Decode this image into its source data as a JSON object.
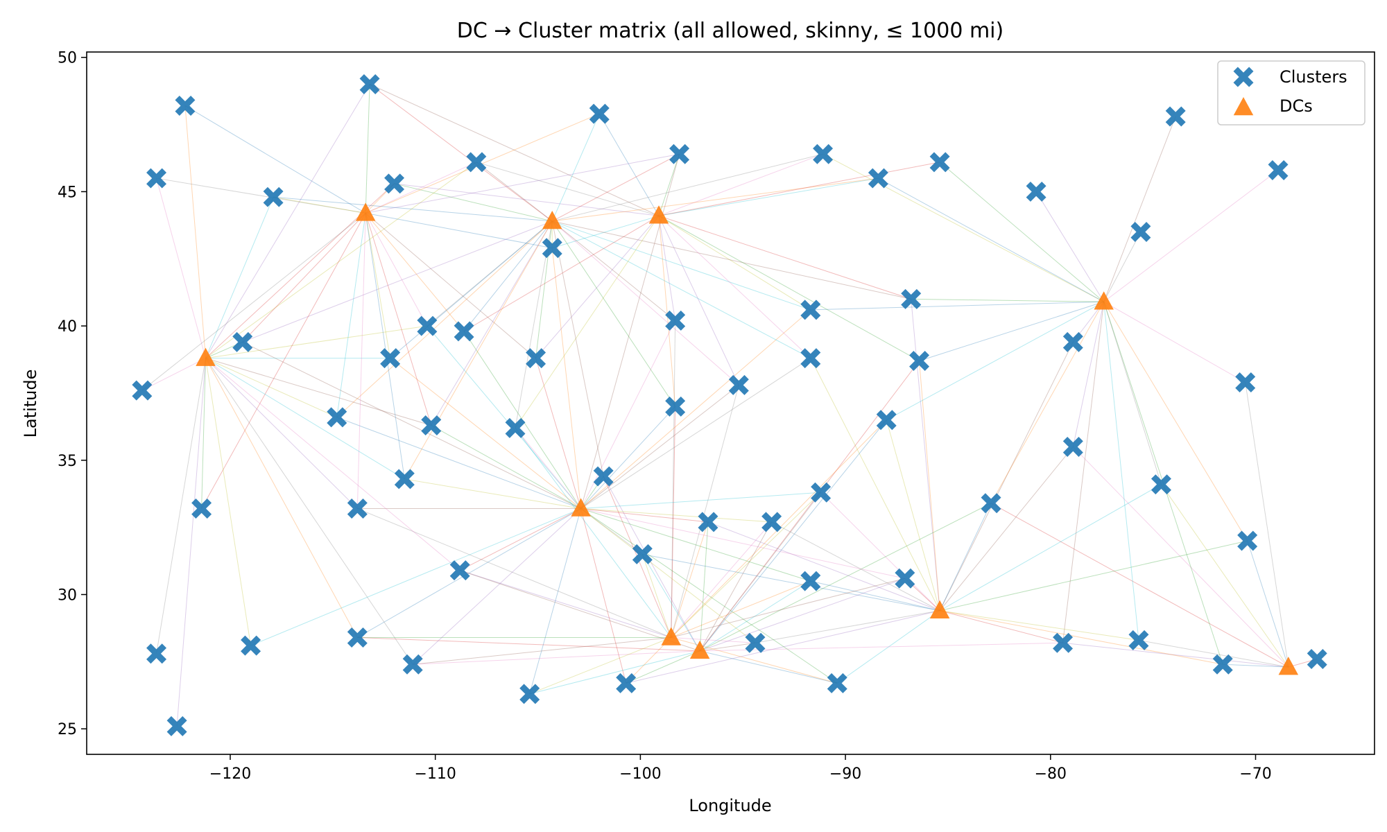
{
  "chart_data": {
    "type": "scatter",
    "title": "DC → Cluster matrix (all allowed, skinny, ≤ 1000 mi)",
    "xlabel": "Longitude",
    "ylabel": "Latitude",
    "xlim": [
      -127,
      -64.2
    ],
    "ylim": [
      24.05,
      50.2
    ],
    "xticks": [
      -120,
      -110,
      -100,
      -90,
      -80,
      -70
    ],
    "xtick_labels": [
      "−120",
      "−110",
      "−100",
      "−90",
      "−80",
      "−70"
    ],
    "yticks": [
      25,
      30,
      35,
      40,
      45,
      50
    ],
    "ytick_labels": [
      "25",
      "30",
      "35",
      "40",
      "45",
      "50"
    ],
    "grid": false,
    "legend": {
      "position": "top-right",
      "entries": [
        {
          "label": "Clusters",
          "marker": "x-filled",
          "color": "#1f77b4"
        },
        {
          "label": "DCs",
          "marker": "triangle",
          "color": "#ff7f0e"
        }
      ]
    },
    "line_colors": [
      "#1f77b4",
      "#ff7f0e",
      "#2ca02c",
      "#d62728",
      "#9467bd",
      "#8c564b",
      "#e377c2",
      "#7f7f7f",
      "#bcbd22",
      "#17becf"
    ],
    "series": [
      {
        "name": "Clusters",
        "color": "#1f77b4",
        "points": [
          [
            -122.2,
            48.2
          ],
          [
            -113.2,
            49.0
          ],
          [
            -123.6,
            45.5
          ],
          [
            -117.9,
            44.8
          ],
          [
            -112.0,
            45.3
          ],
          [
            -108.0,
            46.1
          ],
          [
            -102.0,
            47.9
          ],
          [
            -98.1,
            46.4
          ],
          [
            -91.1,
            46.4
          ],
          [
            -88.4,
            45.5
          ],
          [
            -85.4,
            46.1
          ],
          [
            -80.7,
            45.0
          ],
          [
            -73.9,
            47.8
          ],
          [
            -68.9,
            45.8
          ],
          [
            -75.6,
            43.5
          ],
          [
            -104.3,
            42.9
          ],
          [
            -119.4,
            39.4
          ],
          [
            -110.4,
            40.0
          ],
          [
            -108.6,
            39.8
          ],
          [
            -98.3,
            40.2
          ],
          [
            -91.7,
            40.6
          ],
          [
            -86.8,
            41.0
          ],
          [
            -124.3,
            37.6
          ],
          [
            -112.2,
            38.8
          ],
          [
            -105.1,
            38.8
          ],
          [
            -91.7,
            38.8
          ],
          [
            -86.4,
            38.7
          ],
          [
            -78.9,
            39.4
          ],
          [
            -70.5,
            37.9
          ],
          [
            -114.8,
            36.6
          ],
          [
            -110.2,
            36.3
          ],
          [
            -106.1,
            36.2
          ],
          [
            -98.3,
            37.0
          ],
          [
            -95.2,
            37.8
          ],
          [
            -88.0,
            36.5
          ],
          [
            -121.4,
            33.2
          ],
          [
            -113.8,
            33.2
          ],
          [
            -111.5,
            34.3
          ],
          [
            -101.8,
            34.4
          ],
          [
            -91.2,
            33.8
          ],
          [
            -82.9,
            33.4
          ],
          [
            -78.9,
            35.5
          ],
          [
            -74.6,
            34.1
          ],
          [
            -70.4,
            32.0
          ],
          [
            -108.8,
            30.9
          ],
          [
            -99.9,
            31.5
          ],
          [
            -96.7,
            32.7
          ],
          [
            -93.6,
            32.7
          ],
          [
            -91.7,
            30.5
          ],
          [
            -87.1,
            30.6
          ],
          [
            -123.6,
            27.8
          ],
          [
            -119.0,
            28.1
          ],
          [
            -113.8,
            28.4
          ],
          [
            -111.1,
            27.4
          ],
          [
            -105.4,
            26.3
          ],
          [
            -100.7,
            26.7
          ],
          [
            -94.4,
            28.2
          ],
          [
            -90.4,
            26.7
          ],
          [
            -79.4,
            28.2
          ],
          [
            -75.7,
            28.3
          ],
          [
            -71.6,
            27.4
          ],
          [
            -67.0,
            27.6
          ],
          [
            -122.6,
            25.1
          ]
        ]
      },
      {
        "name": "DCs",
        "color": "#ff7f0e",
        "points": [
          [
            -121.2,
            38.8
          ],
          [
            -113.4,
            44.2
          ],
          [
            -104.3,
            43.9
          ],
          [
            -99.1,
            44.1
          ],
          [
            -77.4,
            40.9
          ],
          [
            -102.9,
            33.2
          ],
          [
            -98.5,
            28.4
          ],
          [
            -97.1,
            27.9
          ],
          [
            -85.4,
            29.4
          ],
          [
            -68.4,
            27.3
          ]
        ]
      }
    ]
  }
}
